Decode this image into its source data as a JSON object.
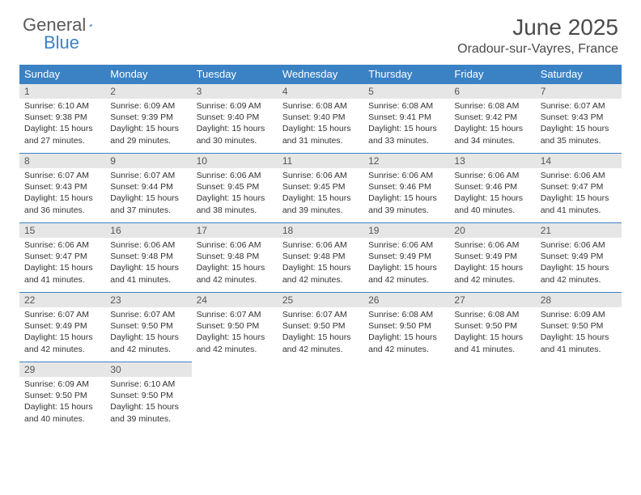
{
  "logo": {
    "text1": "General",
    "text2": "Blue"
  },
  "title": "June 2025",
  "location": "Oradour-sur-Vayres, France",
  "colors": {
    "header_bg": "#3b82c4",
    "header_text": "#ffffff",
    "daynum_bg": "#e6e6e6",
    "daynum_text": "#555555",
    "border": "#3b82c4",
    "logo_gray": "#5a5a5a",
    "logo_blue": "#3b82c4",
    "body_text": "#333333"
  },
  "weekdays": [
    "Sunday",
    "Monday",
    "Tuesday",
    "Wednesday",
    "Thursday",
    "Friday",
    "Saturday"
  ],
  "weeks": [
    [
      {
        "n": "1",
        "sr": "6:10 AM",
        "ss": "9:38 PM",
        "dl": "15 hours and 27 minutes."
      },
      {
        "n": "2",
        "sr": "6:09 AM",
        "ss": "9:39 PM",
        "dl": "15 hours and 29 minutes."
      },
      {
        "n": "3",
        "sr": "6:09 AM",
        "ss": "9:40 PM",
        "dl": "15 hours and 30 minutes."
      },
      {
        "n": "4",
        "sr": "6:08 AM",
        "ss": "9:40 PM",
        "dl": "15 hours and 31 minutes."
      },
      {
        "n": "5",
        "sr": "6:08 AM",
        "ss": "9:41 PM",
        "dl": "15 hours and 33 minutes."
      },
      {
        "n": "6",
        "sr": "6:08 AM",
        "ss": "9:42 PM",
        "dl": "15 hours and 34 minutes."
      },
      {
        "n": "7",
        "sr": "6:07 AM",
        "ss": "9:43 PM",
        "dl": "15 hours and 35 minutes."
      }
    ],
    [
      {
        "n": "8",
        "sr": "6:07 AM",
        "ss": "9:43 PM",
        "dl": "15 hours and 36 minutes."
      },
      {
        "n": "9",
        "sr": "6:07 AM",
        "ss": "9:44 PM",
        "dl": "15 hours and 37 minutes."
      },
      {
        "n": "10",
        "sr": "6:06 AM",
        "ss": "9:45 PM",
        "dl": "15 hours and 38 minutes."
      },
      {
        "n": "11",
        "sr": "6:06 AM",
        "ss": "9:45 PM",
        "dl": "15 hours and 39 minutes."
      },
      {
        "n": "12",
        "sr": "6:06 AM",
        "ss": "9:46 PM",
        "dl": "15 hours and 39 minutes."
      },
      {
        "n": "13",
        "sr": "6:06 AM",
        "ss": "9:46 PM",
        "dl": "15 hours and 40 minutes."
      },
      {
        "n": "14",
        "sr": "6:06 AM",
        "ss": "9:47 PM",
        "dl": "15 hours and 41 minutes."
      }
    ],
    [
      {
        "n": "15",
        "sr": "6:06 AM",
        "ss": "9:47 PM",
        "dl": "15 hours and 41 minutes."
      },
      {
        "n": "16",
        "sr": "6:06 AM",
        "ss": "9:48 PM",
        "dl": "15 hours and 41 minutes."
      },
      {
        "n": "17",
        "sr": "6:06 AM",
        "ss": "9:48 PM",
        "dl": "15 hours and 42 minutes."
      },
      {
        "n": "18",
        "sr": "6:06 AM",
        "ss": "9:48 PM",
        "dl": "15 hours and 42 minutes."
      },
      {
        "n": "19",
        "sr": "6:06 AM",
        "ss": "9:49 PM",
        "dl": "15 hours and 42 minutes."
      },
      {
        "n": "20",
        "sr": "6:06 AM",
        "ss": "9:49 PM",
        "dl": "15 hours and 42 minutes."
      },
      {
        "n": "21",
        "sr": "6:06 AM",
        "ss": "9:49 PM",
        "dl": "15 hours and 42 minutes."
      }
    ],
    [
      {
        "n": "22",
        "sr": "6:07 AM",
        "ss": "9:49 PM",
        "dl": "15 hours and 42 minutes."
      },
      {
        "n": "23",
        "sr": "6:07 AM",
        "ss": "9:50 PM",
        "dl": "15 hours and 42 minutes."
      },
      {
        "n": "24",
        "sr": "6:07 AM",
        "ss": "9:50 PM",
        "dl": "15 hours and 42 minutes."
      },
      {
        "n": "25",
        "sr": "6:07 AM",
        "ss": "9:50 PM",
        "dl": "15 hours and 42 minutes."
      },
      {
        "n": "26",
        "sr": "6:08 AM",
        "ss": "9:50 PM",
        "dl": "15 hours and 42 minutes."
      },
      {
        "n": "27",
        "sr": "6:08 AM",
        "ss": "9:50 PM",
        "dl": "15 hours and 41 minutes."
      },
      {
        "n": "28",
        "sr": "6:09 AM",
        "ss": "9:50 PM",
        "dl": "15 hours and 41 minutes."
      }
    ],
    [
      {
        "n": "29",
        "sr": "6:09 AM",
        "ss": "9:50 PM",
        "dl": "15 hours and 40 minutes."
      },
      {
        "n": "30",
        "sr": "6:10 AM",
        "ss": "9:50 PM",
        "dl": "15 hours and 39 minutes."
      },
      null,
      null,
      null,
      null,
      null
    ]
  ],
  "labels": {
    "sunrise": "Sunrise:",
    "sunset": "Sunset:",
    "daylight": "Daylight:"
  }
}
